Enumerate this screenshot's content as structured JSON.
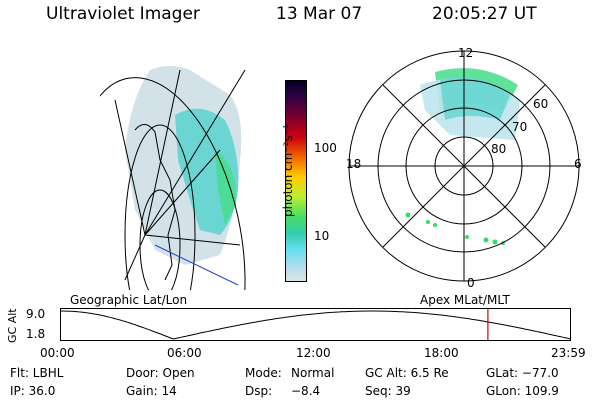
{
  "header": {
    "instrument": "Ultraviolet Imager",
    "date": "13 Mar 07",
    "time": "20:05:27 UT"
  },
  "colorbar": {
    "label": "photon cm⁻²s⁻¹",
    "ticks": [
      "100",
      "10"
    ]
  },
  "panels": {
    "geographic_label": "Geographic Lat/Lon",
    "apex_label": "Apex MLat/MLT"
  },
  "polar": {
    "mlt_labels": {
      "top": "12",
      "left": "18",
      "right": "6",
      "bottom": "0"
    },
    "lat_labels": [
      "60",
      "70",
      "80"
    ]
  },
  "timeline": {
    "ylabel": "GC Alt",
    "ymax": "9.0",
    "ymin": "1.8",
    "hours": [
      "00:00",
      "06:00",
      "12:00",
      "18:00",
      "23:59"
    ],
    "current_time_fraction": 0.837
  },
  "info": {
    "row1": {
      "filter": "Flt: LBHL",
      "door": "Door: Open",
      "mode_label": "Mode:",
      "mode_value": "Normal",
      "gc_alt": "GC Alt: 6.5 Re",
      "glat": "GLat: −77.0"
    },
    "row2": {
      "ip": "IP: 36.0",
      "gain": "Gain: 14",
      "dsp_label": "Dsp:",
      "dsp_value": "−8.4",
      "seq": "Seq: 39",
      "glon": "GLon: 109.9"
    }
  },
  "colors": {
    "line": "#000000",
    "marker": "#cc0000",
    "aurora_green": "#33dd66",
    "aurora_cyan": "#55d8d0",
    "aurora_pale": "#c8e8ee",
    "dayglow_pale": "#dde3e6",
    "blue_line": "#2244cc"
  }
}
